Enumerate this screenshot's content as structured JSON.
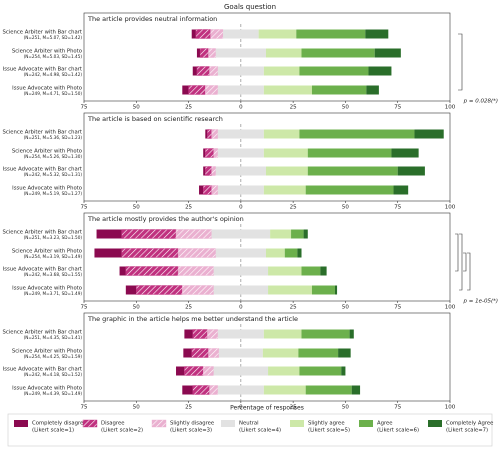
{
  "title": "Goals question",
  "xlabel": "Percentage of responses",
  "legend": [
    {
      "name": "Completely disagree",
      "scale": "(Likert scale=1)",
      "color": "#8b0a50",
      "hatch": false
    },
    {
      "name": "Disagree",
      "scale": "(Likert scale=2)",
      "color": "#c0317f",
      "hatch": true
    },
    {
      "name": "Slightly disagree",
      "scale": "(Likert scale=3)",
      "color": "#eab0d0",
      "hatch": true
    },
    {
      "name": "Neutral",
      "scale": "(Likert scale=4)",
      "color": "#e2e2e2",
      "hatch": false
    },
    {
      "name": "Slightly agree",
      "scale": "(Likert scale=5)",
      "color": "#cde8a8",
      "hatch": false
    },
    {
      "name": "Agree",
      "scale": "(Likert scale=6)",
      "color": "#6cb04c",
      "hatch": false
    },
    {
      "name": "Completely Agree",
      "scale": "(Likert scale=7)",
      "color": "#2a6e2a",
      "hatch": false
    }
  ],
  "chart_data": [
    {
      "type": "diverging-bar",
      "title": "The article provides neutral information",
      "categories": [
        "Science Arbiter with Bar chart",
        "Science Arbiter with Photo",
        "Issue Advocate with Bar chart",
        "Issue Advocate with Photo"
      ],
      "category_notes": [
        "(N=251, M=5.07, SD=1.42)",
        "(N=254, M=5.03, SD=1.45)",
        "(N=242, M=4.98, SD=1.42)",
        "(N=249, M=4.71, SD=1.50)"
      ],
      "values": [
        [
          2,
          7,
          6,
          17,
          18,
          33,
          11
        ],
        [
          1.5,
          4,
          3.5,
          24,
          17,
          35,
          12.5
        ],
        [
          2,
          6,
          4,
          22,
          17,
          33,
          11
        ],
        [
          3,
          8,
          6,
          22,
          23,
          26,
          6
        ]
      ],
      "xlim": [
        -75,
        100
      ],
      "xticks": [
        {
          "value": -75,
          "label": "75"
        },
        {
          "value": -50,
          "label": "50"
        },
        {
          "value": -25,
          "label": "25"
        },
        0,
        25,
        50,
        75,
        100
      ],
      "annotation": "p = 0.028(*)"
    },
    {
      "type": "diverging-bar",
      "title": "The article is based on scientific research",
      "categories": [
        "Science Arbiter with Bar chart",
        "Science Arbiter with Photo",
        "Issue Advocate with Bar chart",
        "Issue Advocate with Photo"
      ],
      "category_notes": [
        "(N=251, M=5.36, SD=1.23)",
        "(N=254, M=5.26, SD=1.30)",
        "(N=242, M=5.32, SD=1.31)",
        "(N=249, M=5.19, SD=1.27)"
      ],
      "values": [
        [
          1,
          2,
          3,
          22,
          17,
          55,
          14
        ],
        [
          1,
          4,
          2,
          22,
          21,
          40,
          13
        ],
        [
          1,
          3,
          2,
          24,
          20,
          43,
          13
        ],
        [
          2,
          4,
          3,
          22,
          20,
          42,
          7
        ]
      ],
      "xlim": [
        -75,
        100
      ],
      "xticks": [
        {
          "value": -75,
          "label": "75"
        },
        {
          "value": -50,
          "label": "50"
        },
        {
          "value": -25,
          "label": "25"
        },
        0,
        25,
        50,
        75,
        100
      ]
    },
    {
      "type": "diverging-bar",
      "title": "The article mostly provides the author's opinion",
      "categories": [
        "Science Arbiter with Bar chart",
        "Science Arbiter with Photo",
        "Issue Advocate with Bar chart",
        "Issue Advocate with Photo"
      ],
      "category_notes": [
        "(N=251, M=3.23, SD=1.50)",
        "(N=254, M=3.19, SD=1.49)",
        "(N=242, M=3.68, SD=1.55)",
        "(N=249, M=3.71, SD=1.49)"
      ],
      "values": [
        [
          12,
          26,
          17,
          28,
          10,
          6,
          2
        ],
        [
          13,
          27,
          18,
          24,
          9,
          6,
          2
        ],
        [
          3,
          25,
          17,
          26,
          16,
          9,
          3
        ],
        [
          5,
          22,
          15,
          26,
          21,
          11,
          1
        ]
      ],
      "xlim": [
        -75,
        100
      ],
      "xticks": [
        {
          "value": -75,
          "label": "75"
        },
        {
          "value": -50,
          "label": "50"
        },
        {
          "value": -25,
          "label": "25"
        },
        0,
        25,
        50,
        75,
        100
      ],
      "annotation": "p = 1e-05(*)"
    },
    {
      "type": "diverging-bar",
      "title": "The graphic in the article helps me better understand the article",
      "categories": [
        "Science Arbiter with Bar chart",
        "Science Arbiter with Photo",
        "Issue Advocate with Bar chart",
        "Issue Advocate with Photo"
      ],
      "category_notes": [
        "(N=251, M=4.35, SD=1.41)",
        "(N=254, M=4.25, SD=1.59)",
        "(N=242, M=4.18, SD=1.52)",
        "(N=249, M=4.39, SD=1.49)"
      ],
      "values": [
        [
          4,
          7,
          5,
          22,
          18,
          23,
          2
        ],
        [
          4,
          8,
          5,
          21,
          17,
          19,
          6
        ],
        [
          4,
          9,
          5,
          26,
          15,
          20,
          2
        ],
        [
          5,
          8,
          4,
          22,
          20,
          22,
          4
        ]
      ],
      "xlim": [
        -75,
        100
      ],
      "xticks": [
        {
          "value": -75,
          "label": "75"
        },
        {
          "value": -50,
          "label": "50"
        },
        {
          "value": -25,
          "label": "25"
        },
        0,
        25,
        50,
        75,
        100
      ]
    }
  ]
}
